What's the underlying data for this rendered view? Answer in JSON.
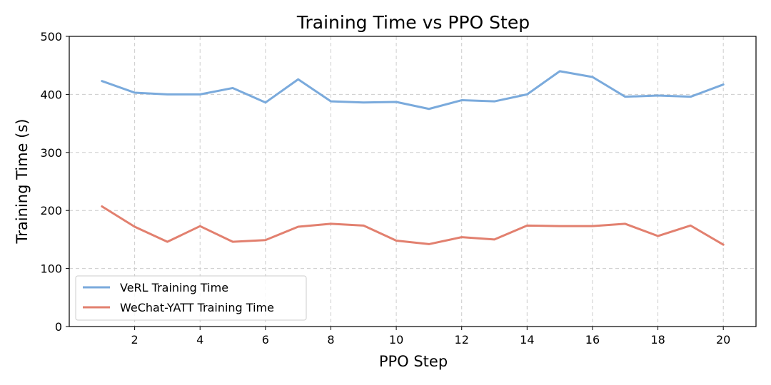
{
  "chart_data": {
    "type": "line",
    "title": "Training Time vs PPO Step",
    "xlabel": "PPO Step",
    "ylabel": "Training Time (s)",
    "x": [
      1,
      2,
      3,
      4,
      5,
      6,
      7,
      8,
      9,
      10,
      11,
      12,
      13,
      14,
      15,
      16,
      17,
      18,
      19,
      20
    ],
    "xlim": [
      0,
      21
    ],
    "ylim": [
      0,
      500
    ],
    "xticks": [
      2,
      4,
      6,
      8,
      10,
      12,
      14,
      16,
      18,
      20
    ],
    "xtick_labels": [
      "2",
      "4",
      "6",
      "8",
      "10",
      "12",
      "14",
      "16",
      "18",
      "20"
    ],
    "yticks": [
      0,
      100,
      200,
      300,
      400,
      500
    ],
    "ytick_labels": [
      "0",
      "100",
      "200",
      "300",
      "400",
      "500"
    ],
    "grid": true,
    "legend_position": "lower-left",
    "series": [
      {
        "name": "VeRL Training Time",
        "color": "#7aaadc",
        "values": [
          423,
          403,
          400,
          400,
          411,
          386,
          426,
          388,
          386,
          387,
          375,
          390,
          388,
          400,
          440,
          430,
          396,
          398,
          396,
          417
        ]
      },
      {
        "name": "WeChat-YATT Training Time",
        "color": "#e2806f",
        "values": [
          207,
          172,
          146,
          173,
          146,
          149,
          172,
          177,
          174,
          148,
          142,
          154,
          150,
          174,
          173,
          173,
          177,
          156,
          174,
          141
        ]
      }
    ]
  }
}
